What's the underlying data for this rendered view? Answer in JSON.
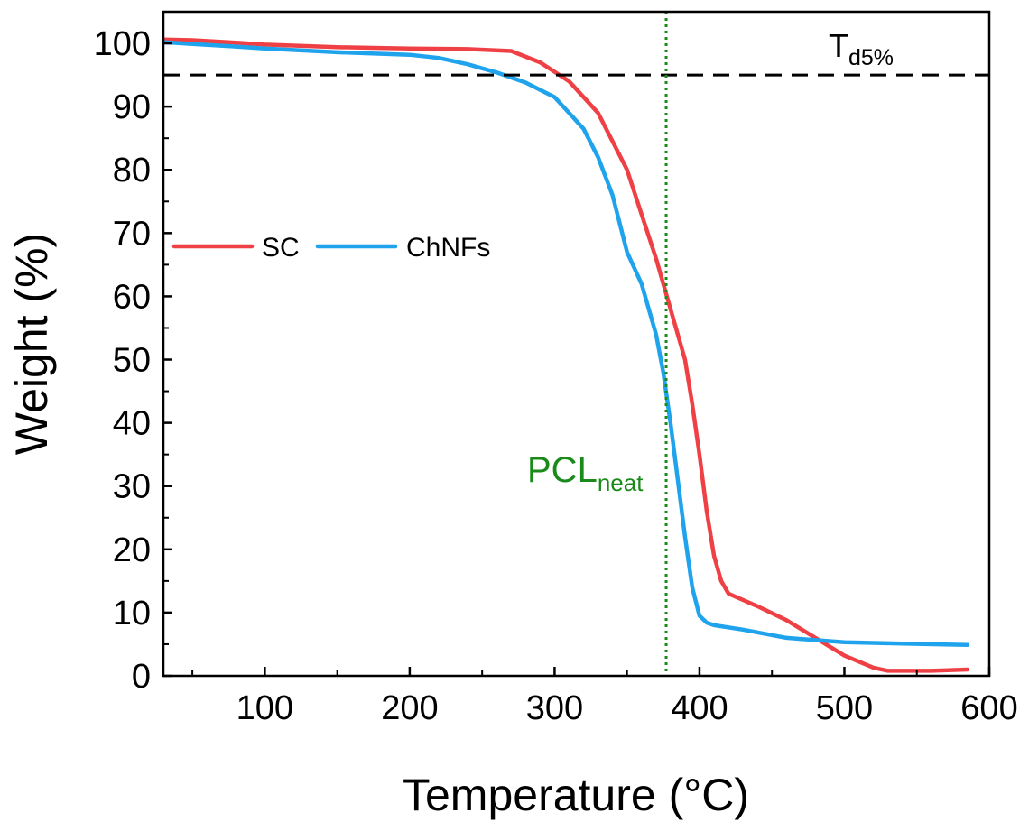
{
  "chart_data": {
    "type": "line",
    "xlabel": "Temperature (°C)",
    "ylabel": "Weight (%)",
    "xlim": [
      30,
      600
    ],
    "ylim": [
      0,
      105
    ],
    "x_ticks": [
      100,
      200,
      300,
      400,
      500,
      600
    ],
    "y_ticks": [
      0,
      10,
      20,
      30,
      40,
      50,
      60,
      70,
      80,
      90,
      100
    ],
    "grid": false,
    "legend_position": "middle-left",
    "series": [
      {
        "name": "SC",
        "color": "#ef4145",
        "x": [
          30,
          50,
          80,
          100,
          150,
          200,
          240,
          270,
          290,
          310,
          330,
          350,
          360,
          370,
          375,
          380,
          390,
          395,
          400,
          405,
          410,
          415,
          420,
          440,
          460,
          480,
          500,
          520,
          530,
          560,
          585
        ],
        "y": [
          100.6,
          100.5,
          100.1,
          99.8,
          99.4,
          99.2,
          99.1,
          98.8,
          97.0,
          94.0,
          89.0,
          80.0,
          73.0,
          66.0,
          62.0,
          58.0,
          50.0,
          43.0,
          35.0,
          26.0,
          19.0,
          15.0,
          13.0,
          11.0,
          8.8,
          6.0,
          3.2,
          1.3,
          0.8,
          0.8,
          1.0
        ]
      },
      {
        "name": "ChNFs",
        "color": "#1fa3ec",
        "x": [
          30,
          50,
          80,
          100,
          150,
          200,
          220,
          240,
          260,
          280,
          300,
          320,
          330,
          340,
          350,
          360,
          370,
          375,
          380,
          385,
          390,
          395,
          400,
          405,
          410,
          430,
          460,
          500,
          540,
          585
        ],
        "y": [
          100.2,
          99.9,
          99.5,
          99.2,
          98.6,
          98.2,
          97.7,
          96.7,
          95.4,
          93.8,
          91.5,
          86.5,
          82.0,
          76.0,
          67.0,
          62.0,
          54.0,
          48.0,
          40.0,
          31.0,
          22.0,
          14.0,
          9.5,
          8.4,
          8.0,
          7.3,
          6.0,
          5.3,
          5.1,
          4.9
        ]
      }
    ],
    "reference_lines": [
      {
        "orientation": "horizontal",
        "value": 95,
        "style": "dashed",
        "color": "#000000",
        "label_main": "T",
        "label_sub": "d5%"
      },
      {
        "orientation": "vertical",
        "value": 377,
        "style": "dotted",
        "color": "#1a8a1a",
        "label_main": "PCL",
        "label_sub": "neat"
      }
    ]
  }
}
